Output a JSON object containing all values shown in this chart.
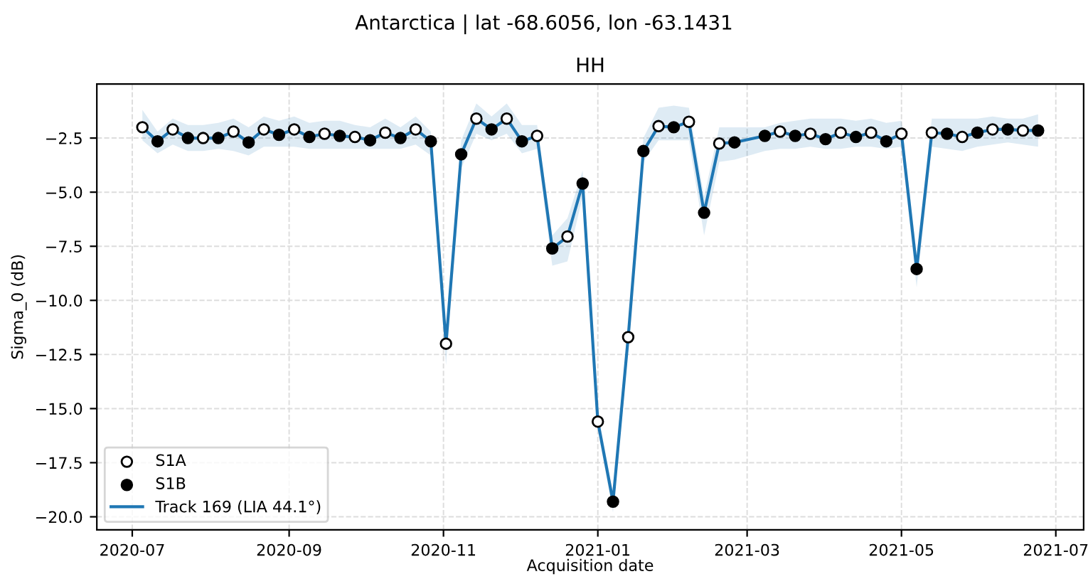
{
  "chart_data": {
    "type": "line",
    "title": "Antarctica | lat -68.6056, lon -63.1431",
    "subtitle": "HH",
    "xlabel": "Acquisition date",
    "ylabel": "Sigma_0 (dB)",
    "xlim": [
      "2020-06-17",
      "2021-07-12"
    ],
    "ylim": [
      -20.6,
      0.0
    ],
    "xticks": [
      {
        "value": "2020-07-01",
        "label": "2020-07"
      },
      {
        "value": "2020-09-01",
        "label": "2020-09"
      },
      {
        "value": "2020-11-01",
        "label": "2020-11"
      },
      {
        "value": "2021-01-01",
        "label": "2021-01"
      },
      {
        "value": "2021-03-01",
        "label": "2021-03"
      },
      {
        "value": "2021-05-01",
        "label": "2021-05"
      },
      {
        "value": "2021-07-01",
        "label": "2021-07"
      }
    ],
    "yticks": [
      {
        "value": -20.0,
        "label": "−20.0"
      },
      {
        "value": -17.5,
        "label": "−17.5"
      },
      {
        "value": -15.0,
        "label": "−15.0"
      },
      {
        "value": -12.5,
        "label": "−12.5"
      },
      {
        "value": -10.0,
        "label": "−10.0"
      },
      {
        "value": -7.5,
        "label": "−7.5"
      },
      {
        "value": -5.0,
        "label": "−5.0"
      },
      {
        "value": -2.5,
        "label": "−2.5"
      }
    ],
    "grid": true,
    "legend": "bottom left",
    "series": [
      {
        "name": "S1A",
        "type": "scatter",
        "marker": "circle",
        "color": "#ffffff",
        "x": [
          "2020-07-05",
          "2020-07-17",
          "2020-07-29",
          "2020-08-10",
          "2020-08-22",
          "2020-09-03",
          "2020-09-15",
          "2020-09-27",
          "2020-10-09",
          "2020-10-21",
          "2020-11-02",
          "2020-11-14",
          "2020-11-26",
          "2020-12-08",
          "2020-12-20",
          "2021-01-01",
          "2021-01-13",
          "2021-01-25",
          "2021-02-06",
          "2021-02-18",
          "2021-03-14",
          "2021-03-26",
          "2021-04-07",
          "2021-04-19",
          "2021-05-01",
          "2021-05-13",
          "2021-05-25",
          "2021-06-06",
          "2021-06-18"
        ],
        "values": [
          -2.0,
          -2.1,
          -2.5,
          -2.2,
          -2.1,
          -2.1,
          -2.3,
          -2.45,
          -2.25,
          -2.1,
          -12.0,
          -1.6,
          -1.6,
          -2.4,
          -7.05,
          -15.6,
          -11.7,
          -1.95,
          -1.75,
          -2.75,
          -2.2,
          -2.3,
          -2.25,
          -2.25,
          -2.3,
          -2.25,
          -2.45,
          -2.1,
          -2.15
        ]
      },
      {
        "name": "S1B",
        "type": "scatter",
        "marker": "circle",
        "color": "#000000",
        "x": [
          "2020-07-11",
          "2020-07-23",
          "2020-08-04",
          "2020-08-16",
          "2020-08-28",
          "2020-09-09",
          "2020-09-21",
          "2020-10-03",
          "2020-10-15",
          "2020-10-27",
          "2020-11-08",
          "2020-11-20",
          "2020-12-02",
          "2020-12-14",
          "2020-12-26",
          "2021-01-07",
          "2021-01-19",
          "2021-01-31",
          "2021-02-12",
          "2021-02-24",
          "2021-03-08",
          "2021-03-20",
          "2021-04-01",
          "2021-04-13",
          "2021-04-25",
          "2021-05-07",
          "2021-05-19",
          "2021-05-31",
          "2021-06-12",
          "2021-06-24"
        ],
        "values": [
          -2.65,
          -2.5,
          -2.5,
          -2.7,
          -2.35,
          -2.45,
          -2.4,
          -2.6,
          -2.5,
          -2.65,
          -3.25,
          -2.1,
          -2.65,
          -7.6,
          -4.6,
          -19.3,
          -3.1,
          -2.0,
          -5.95,
          -2.7,
          -2.4,
          -2.4,
          -2.55,
          -2.45,
          -2.65,
          -8.55,
          -2.3,
          -2.25,
          -2.1,
          -2.15
        ]
      },
      {
        "name": "Track 169 (LIA 44.1°)",
        "color": "#1f77b4",
        "marker": "none",
        "line_style": "solid",
        "x": [
          "2020-07-05",
          "2020-07-11",
          "2020-07-17",
          "2020-07-23",
          "2020-07-29",
          "2020-08-04",
          "2020-08-10",
          "2020-08-16",
          "2020-08-22",
          "2020-08-28",
          "2020-09-03",
          "2020-09-09",
          "2020-09-15",
          "2020-09-21",
          "2020-09-27",
          "2020-10-03",
          "2020-10-09",
          "2020-10-15",
          "2020-10-21",
          "2020-10-27",
          "2020-11-02",
          "2020-11-08",
          "2020-11-14",
          "2020-11-20",
          "2020-11-26",
          "2020-12-02",
          "2020-12-08",
          "2020-12-14",
          "2020-12-20",
          "2020-12-26",
          "2021-01-01",
          "2021-01-07",
          "2021-01-13",
          "2021-01-19",
          "2021-01-25",
          "2021-01-31",
          "2021-02-06",
          "2021-02-12",
          "2021-02-18",
          "2021-02-24",
          "2021-03-08",
          "2021-03-14",
          "2021-03-20",
          "2021-03-26",
          "2021-04-01",
          "2021-04-07",
          "2021-04-13",
          "2021-04-19",
          "2021-04-25",
          "2021-05-01",
          "2021-05-07",
          "2021-05-13",
          "2021-05-19",
          "2021-05-25",
          "2021-05-31",
          "2021-06-06",
          "2021-06-12",
          "2021-06-18",
          "2021-06-24"
        ],
        "values": [
          -2.0,
          -2.65,
          -2.1,
          -2.5,
          -2.5,
          -2.5,
          -2.2,
          -2.7,
          -2.1,
          -2.35,
          -2.1,
          -2.45,
          -2.3,
          -2.4,
          -2.45,
          -2.6,
          -2.25,
          -2.5,
          -2.1,
          -2.65,
          -12.0,
          -3.25,
          -1.6,
          -2.1,
          -1.6,
          -2.65,
          -2.4,
          -7.6,
          -7.05,
          -4.6,
          -15.6,
          -19.3,
          -11.7,
          -3.1,
          -1.95,
          -2.0,
          -1.75,
          -5.95,
          -2.75,
          -2.7,
          -2.4,
          -2.2,
          -2.4,
          -2.3,
          -2.55,
          -2.25,
          -2.45,
          -2.25,
          -2.65,
          -2.3,
          -8.55,
          -2.25,
          -2.3,
          -2.45,
          -2.25,
          -2.1,
          -2.1,
          -2.15,
          -2.15
        ],
        "lower": [
          -2.6,
          -3.2,
          -2.8,
          -3.1,
          -3.1,
          -3.0,
          -3.1,
          -3.3,
          -2.9,
          -2.9,
          -2.9,
          -3.0,
          -3.0,
          -3.0,
          -3.0,
          -3.0,
          -3.0,
          -3.0,
          -2.8,
          -3.3,
          -13.0,
          -3.9,
          -2.3,
          -2.6,
          -2.3,
          -3.2,
          -3.0,
          -8.4,
          -8.2,
          -5.2,
          -16.0,
          -19.8,
          -12.3,
          -3.6,
          -2.6,
          -2.6,
          -2.6,
          -7.0,
          -3.6,
          -3.5,
          -3.1,
          -3.0,
          -3.0,
          -2.9,
          -3.0,
          -3.0,
          -2.9,
          -2.9,
          -3.0,
          -2.9,
          -9.4,
          -2.9,
          -3.0,
          -3.1,
          -2.9,
          -2.8,
          -2.7,
          -2.8,
          -2.9
        ],
        "upper": [
          -1.2,
          -2.2,
          -1.6,
          -1.9,
          -1.9,
          -1.8,
          -1.6,
          -2.0,
          -1.5,
          -1.7,
          -1.5,
          -1.8,
          -1.7,
          -1.7,
          -1.9,
          -2.0,
          -1.6,
          -2.0,
          -1.5,
          -2.2,
          -11.5,
          -2.6,
          -0.9,
          -1.5,
          -0.9,
          -1.9,
          -1.9,
          -7.0,
          -6.2,
          -4.0,
          -15.2,
          -18.9,
          -11.2,
          -2.5,
          -1.1,
          -1.0,
          -1.1,
          -5.2,
          -2.0,
          -2.0,
          -2.0,
          -1.8,
          -1.7,
          -1.6,
          -1.6,
          -1.6,
          -1.7,
          -1.6,
          -1.8,
          -1.7,
          -7.9,
          -1.6,
          -1.6,
          -1.6,
          -1.6,
          -1.5,
          -1.6,
          -1.6,
          -1.4
        ]
      }
    ]
  }
}
